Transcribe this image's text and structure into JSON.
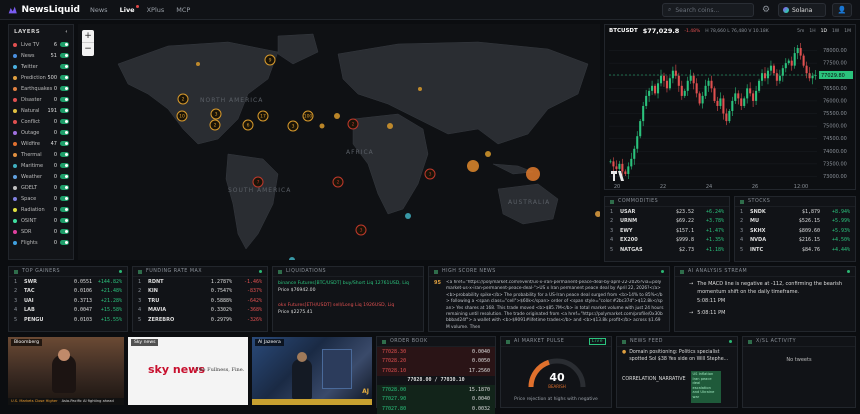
{
  "app": {
    "name": "NewsLiquid",
    "nav": [
      "News",
      "Live",
      "XPlus",
      "MCP"
    ],
    "active": "Live",
    "search_placeholder": "Search coins...",
    "wallet": "Solana"
  },
  "layers": {
    "title": "LAYERS",
    "items": [
      {
        "label": "Live TV",
        "count": "6",
        "color": "#e05050"
      },
      {
        "label": "News",
        "count": "51",
        "color": "#4a8fe0"
      },
      {
        "label": "Twitter",
        "count": "",
        "color": "#4ab0e0"
      },
      {
        "label": "Prediction",
        "count": "500",
        "color": "#e0a040"
      },
      {
        "label": "Earthquakes",
        "count": "0",
        "color": "#e08040"
      },
      {
        "label": "Disaster",
        "count": "0",
        "color": "#e05050"
      },
      {
        "label": "Natural",
        "count": "191",
        "color": "#e0c040"
      },
      {
        "label": "Conflict",
        "count": "0",
        "color": "#e05050"
      },
      {
        "label": "Outage",
        "count": "0",
        "color": "#a070e0"
      },
      {
        "label": "Wildfire",
        "count": "47",
        "color": "#e07030"
      },
      {
        "label": "Thermal",
        "count": "0",
        "color": "#e09040"
      },
      {
        "label": "Maritime",
        "count": "0",
        "color": "#40b0c0"
      },
      {
        "label": "Weather",
        "count": "0",
        "color": "#60a0e0"
      },
      {
        "label": "GDELT",
        "count": "0",
        "color": "#c0c0c0"
      },
      {
        "label": "Space",
        "count": "0",
        "color": "#8080e0"
      },
      {
        "label": "Radiation",
        "count": "0",
        "color": "#e0e040"
      },
      {
        "label": "OSINT",
        "count": "0",
        "color": "#40e0a0"
      },
      {
        "label": "SDR",
        "count": "0",
        "color": "#e040a0"
      },
      {
        "label": "Flights",
        "count": "0",
        "color": "#40a0e0"
      }
    ]
  },
  "map": {
    "labels": [
      "NORTH AMERICA",
      "AFRICA",
      "SOUTH AMERICA",
      "AUSTRALIA"
    ],
    "markers": [
      {
        "n": "9",
        "c": "#d89a2c"
      },
      {
        "n": "2",
        "c": "#d89a2c"
      },
      {
        "n": "3",
        "c": "#d89a2c"
      },
      {
        "n": "10",
        "c": "#d89a2c"
      },
      {
        "n": "17",
        "c": "#d89a2c"
      },
      {
        "n": "100",
        "c": "#d89a2c"
      },
      {
        "n": "2",
        "c": "#d89a2c"
      },
      {
        "n": "6",
        "c": "#d89a2c"
      },
      {
        "n": "3",
        "c": "#d89a2c"
      },
      {
        "n": "2",
        "c": "#c0392b"
      },
      {
        "n": "3",
        "c": "#c0392b"
      },
      {
        "n": "7",
        "c": "#c0392b"
      },
      {
        "n": "2",
        "c": "#c0392b"
      },
      {
        "n": "3",
        "c": "#c0392b"
      }
    ]
  },
  "chart": {
    "symbol": "BTCUSDT",
    "price": "$77,029.8",
    "change": "-1.48%",
    "hl": "H 78,660 L 76,480 V 10.18K",
    "timeframes": [
      "5m",
      "1H",
      "1D",
      "1W",
      "1M"
    ],
    "y_ticks": [
      "78000.00",
      "77500.00",
      "77000.00",
      "76500.00",
      "76000.00",
      "75500.00",
      "75000.00",
      "74500.00",
      "74000.00",
      "73500.00",
      "73000.00"
    ],
    "x_ticks": [
      "20",
      "22",
      "24",
      "26",
      "12:00"
    ],
    "current": "77029.80",
    "ylim": [
      72900,
      78300
    ]
  },
  "commodities": {
    "title": "COMMODITIES",
    "rows": [
      {
        "i": "1",
        "s": "USAR",
        "p": "$23.52",
        "c": "+6.24%"
      },
      {
        "i": "2",
        "s": "URNM",
        "p": "$69.22",
        "c": "+3.78%"
      },
      {
        "i": "3",
        "s": "EWY",
        "p": "$157.1",
        "c": "+1.47%"
      },
      {
        "i": "4",
        "s": "EX200",
        "p": "$999.8",
        "c": "+1.35%"
      },
      {
        "i": "5",
        "s": "NATGAS",
        "p": "$2.73",
        "c": "+1.18%"
      }
    ]
  },
  "stocks": {
    "title": "STOCKS",
    "rows": [
      {
        "i": "1",
        "s": "SNDK",
        "p": "$1,879",
        "c": "+8.94%"
      },
      {
        "i": "2",
        "s": "MU",
        "p": "$526.15",
        "c": "+5.99%"
      },
      {
        "i": "3",
        "s": "SKHX",
        "p": "$809.60",
        "c": "+5.93%"
      },
      {
        "i": "4",
        "s": "NVDA",
        "p": "$216.15",
        "c": "+4.50%"
      },
      {
        "i": "5",
        "s": "INTC",
        "p": "$84.76",
        "c": "+4.44%"
      }
    ]
  },
  "gainers": {
    "title": "TOP GAINERS",
    "rows": [
      {
        "i": "1",
        "s": "SWR",
        "p": "0.0551",
        "c": "+144.82%"
      },
      {
        "i": "2",
        "s": "TAC",
        "p": "0.0106",
        "c": "+21.48%"
      },
      {
        "i": "3",
        "s": "UAI",
        "p": "0.3713",
        "c": "+21.28%"
      },
      {
        "i": "4",
        "s": "LAB",
        "p": "0.0047",
        "c": "+15.58%"
      },
      {
        "i": "5",
        "s": "PENGU",
        "p": "0.0103",
        "c": "+15.55%"
      }
    ]
  },
  "funding": {
    "title": "FUNDING RATE MAX",
    "rows": [
      {
        "i": "1",
        "s": "RDNT",
        "p": "1.2787%",
        "c": "-1.46%"
      },
      {
        "i": "2",
        "s": "KIN",
        "p": "0.7547%",
        "c": "-837%"
      },
      {
        "i": "3",
        "s": "TRU",
        "p": "0.5888%",
        "c": "-642%"
      },
      {
        "i": "4",
        "s": "MAVIA",
        "p": "0.3302%",
        "c": "-368%"
      },
      {
        "i": "5",
        "s": "ZEREBRO",
        "p": "0.2979%",
        "c": "-326%"
      }
    ]
  },
  "liquidations": {
    "title": "LIQUIDATIONS",
    "items": [
      {
        "head": "binance Futures[BTC/USDT] buy/Short Liq 12761USD, Liq",
        "price": "Price $76942.00"
      },
      {
        "head": "okx Futures[ETH/USDT] sell/Long Liq 1926USD, Liq",
        "price": "Price $2275.41"
      }
    ]
  },
  "high_score": {
    "title": "HIGH SCORE NEWS",
    "score": "95",
    "text": "<a href=\"https://polymarket.com/event/us-x-iran-permanent-peace-deal-by-april-22-2026?via=polymarket-us-x-iran-permanent-peace-deal-\">US x Iran permanent peace deal by April 22, 2026?</a> <b>probability spike</b> The probability for a US-Iran peace deal surged from <b>14% to 85%</b> following a <span class=\"cell\">$60k</span> order of <span style=\"color:#2bc37d\">$12.8k</span> Yes shares at 168. This trade moved <b>$85.7M</b> in total market volume with just 24 hours remaining until resolution. The trade originated from <a href=\"https://polymarket.com/profile/0x30bbbbad24f\"> a wallet with <b>$9091#lifetime trades</b> and <b>$13.8k profit</b> across $1.69M volume. Then"
  },
  "ai_stream": {
    "title": "AI ANALYSIS STREAM",
    "msgs": [
      {
        "text": "The MACD line is negative at -112, confirming the bearish momentum shift on the daily timeframe.",
        "time": "5:08:11 PM"
      },
      {
        "text": "",
        "time": "5:08:11 PM"
      }
    ]
  },
  "tv": [
    {
      "label": "Bloomberg",
      "banner": "U.S. Markets Close Higher",
      "ticker": "Asia-Pacific AI fighting ahead"
    },
    {
      "label": "Sky news",
      "banner": "sky news",
      "tag": "The Fullness, Fine."
    },
    {
      "label": "Al Jazeera",
      "banner": "AJ"
    }
  ],
  "orderbook": {
    "title": "ORDER BOOK",
    "asks": [
      {
        "p": "77028.30",
        "q": "0.0040"
      },
      {
        "p": "77028.20",
        "q": "0.0050"
      },
      {
        "p": "77028.10",
        "q": "17.2560"
      }
    ],
    "mid": "77028.00 / 77030.10",
    "bids": [
      {
        "p": "77028.00",
        "q": "15.1870"
      },
      {
        "p": "77027.90",
        "q": "0.0040"
      },
      {
        "p": "77027.80",
        "q": "0.0032"
      }
    ]
  },
  "pulse": {
    "title": "AI MARKET PULSE",
    "badge": "Live",
    "value": "40",
    "value_frac": 0.4,
    "label": "BEARISH",
    "caption": "Price rejection at highs with negative"
  },
  "news_feed": {
    "title": "NEWS FEED",
    "items": [
      {
        "text": "Domain positioning: Politics specialist spotted Sol $38 Yes side on Will Stephe..."
      },
      {
        "text": "CORRELATION_NARRATIVE",
        "tag": "US Inflation Iran peace deal escalation and Ukraine war"
      }
    ]
  },
  "x_activity": {
    "title": "X/SL ACTIVITY",
    "empty": "No tweets"
  }
}
